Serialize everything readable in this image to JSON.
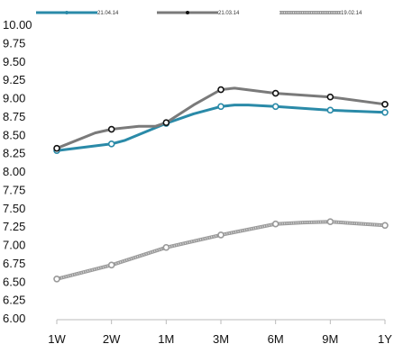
{
  "chart_data": {
    "type": "line",
    "title": "",
    "xlabel": "",
    "ylabel": "",
    "grid": false,
    "legend_position": "top",
    "categories": [
      "1W",
      "2W",
      "1M",
      "3M",
      "6M",
      "9M",
      "1Y"
    ],
    "yticks": [
      "10.00",
      "9.75",
      "9.50",
      "9.25",
      "9.00",
      "8.75",
      "8.50",
      "8.25",
      "8.00",
      "7.75",
      "7.50",
      "7.25",
      "7.00",
      "6.75",
      "6.50",
      "6.25",
      "6.00"
    ],
    "ylim": [
      6.0,
      10.0
    ],
    "series": [
      {
        "name": "21.04.14",
        "color": "#2a8aa8",
        "style": "solid",
        "points": [
          {
            "x": 0.0,
            "y": 8.28,
            "marker": true
          },
          {
            "x": 1.0,
            "y": 8.37,
            "marker": true
          },
          {
            "x": 1.25,
            "y": 8.42,
            "marker": false
          },
          {
            "x": 2.0,
            "y": 8.65,
            "marker": true
          },
          {
            "x": 2.5,
            "y": 8.78,
            "marker": false
          },
          {
            "x": 3.0,
            "y": 8.88,
            "marker": true
          },
          {
            "x": 3.25,
            "y": 8.9,
            "marker": false
          },
          {
            "x": 3.5,
            "y": 8.9,
            "marker": false
          },
          {
            "x": 4.0,
            "y": 8.88,
            "marker": true
          },
          {
            "x": 5.0,
            "y": 8.83,
            "marker": true
          },
          {
            "x": 6.0,
            "y": 8.8,
            "marker": true
          }
        ]
      },
      {
        "name": "21.03.14",
        "color": "#7a7a7a",
        "style": "solid",
        "points": [
          {
            "x": 0.0,
            "y": 8.31,
            "marker": true
          },
          {
            "x": 0.7,
            "y": 8.52,
            "marker": false
          },
          {
            "x": 1.0,
            "y": 8.57,
            "marker": true
          },
          {
            "x": 1.5,
            "y": 8.61,
            "marker": false
          },
          {
            "x": 1.8,
            "y": 8.61,
            "marker": false
          },
          {
            "x": 2.0,
            "y": 8.66,
            "marker": true
          },
          {
            "x": 2.5,
            "y": 8.9,
            "marker": false
          },
          {
            "x": 3.0,
            "y": 9.11,
            "marker": true
          },
          {
            "x": 3.25,
            "y": 9.13,
            "marker": false
          },
          {
            "x": 4.0,
            "y": 9.06,
            "marker": true
          },
          {
            "x": 5.0,
            "y": 9.01,
            "marker": true
          },
          {
            "x": 6.0,
            "y": 8.91,
            "marker": true
          }
        ]
      },
      {
        "name": "19.02.14",
        "color": "#9a9a9a",
        "style": "dotted",
        "points": [
          {
            "x": 0.0,
            "y": 6.53,
            "marker": true
          },
          {
            "x": 1.0,
            "y": 6.72,
            "marker": true
          },
          {
            "x": 2.0,
            "y": 6.96,
            "marker": true
          },
          {
            "x": 3.0,
            "y": 7.13,
            "marker": true
          },
          {
            "x": 4.0,
            "y": 7.28,
            "marker": true
          },
          {
            "x": 4.5,
            "y": 7.3,
            "marker": false
          },
          {
            "x": 5.0,
            "y": 7.31,
            "marker": true
          },
          {
            "x": 6.0,
            "y": 7.26,
            "marker": true
          }
        ]
      }
    ]
  }
}
